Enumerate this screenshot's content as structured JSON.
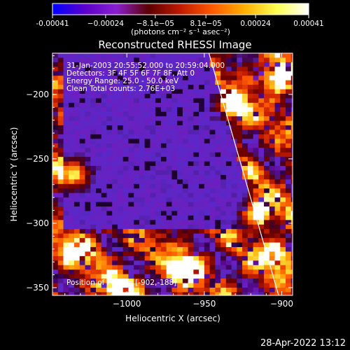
{
  "chart_data": {
    "type": "heatmap",
    "title": "Reconstructed RHESSI Image",
    "xlabel": "Heliocentric X (arcsec)",
    "ylabel": "Heliocentric Y (arcsec)",
    "xlim": [
      -1048,
      -893
    ],
    "ylim": [
      -356,
      -168
    ],
    "x_ticks": [
      -1000,
      -950,
      -900
    ],
    "x_tick_labels": [
      "−1000",
      "−950",
      "−900"
    ],
    "y_ticks": [
      -200,
      -250,
      -300,
      -350
    ],
    "y_tick_labels": [
      "−200",
      "−250",
      "−300",
      "−350"
    ],
    "colorbar": {
      "range": [
        -0.00041,
        0.00041
      ],
      "tick_values": [
        -0.00041,
        -0.00024,
        -8.1e-05,
        8.1e-05,
        0.00024,
        0.00041
      ],
      "tick_labels": [
        "-0.00041",
        "−0.00024",
        "−8.1e−05",
        "8.1e−05",
        "0.00024",
        "0.00041"
      ],
      "units": "(photons cm⁻² s⁻¹ asec⁻²)",
      "colors": [
        "#0000ff",
        "#5b00cc",
        "#8a1fd0",
        "#5a0000",
        "#c01a00",
        "#ff5a00",
        "#ffb000",
        "#ffff50",
        "#ffffff"
      ]
    },
    "annotations": [
      "31-Jan-2003 20:55:52.000 to 20:59:04.000",
      "Detectors: 3F 4F 5F 6F 7F 8F, Att 0",
      "Energy Range: 25.0 - 50.0 keV",
      "Clean    Total counts: 2.76E+03"
    ],
    "peak_label": "Position of Peak = [-902,-188]",
    "limb_line": [
      [
        -947,
        -168
      ],
      [
        -902,
        -356
      ]
    ],
    "bright_sources": [
      {
        "x": -902,
        "y": -188,
        "level": 1.0
      },
      {
        "x": -963,
        "y": -335,
        "level": 0.95
      },
      {
        "x": -915,
        "y": -293,
        "level": 0.85
      },
      {
        "x": -932,
        "y": -210,
        "level": 0.75
      },
      {
        "x": -1030,
        "y": -320,
        "level": 0.8
      },
      {
        "x": -1035,
        "y": -262,
        "level": 0.7
      },
      {
        "x": -1005,
        "y": -350,
        "level": 0.7
      },
      {
        "x": -905,
        "y": -325,
        "level": 0.75
      }
    ]
  },
  "footer": {
    "timestamp": "28-Apr-2022 13:12"
  }
}
